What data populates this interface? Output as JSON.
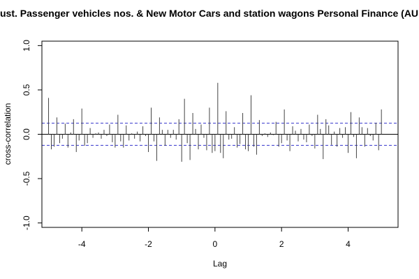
{
  "chart_data": {
    "type": "bar",
    "title": "ust. Passenger vehicles nos. & New Motor Cars and station wagons Personal Finance (AU",
    "xlabel": "Lag",
    "ylabel": "cross-correlation",
    "xlim": [
      -5.2,
      5.5
    ],
    "ylim": [
      -1.05,
      1.05
    ],
    "x_ticks": [
      -4,
      -2,
      0,
      2,
      4
    ],
    "x_tick_labels": [
      "-4",
      "-2",
      "0",
      "2",
      "4"
    ],
    "y_ticks": [
      -1.0,
      -0.5,
      0.0,
      0.5,
      1.0
    ],
    "y_tick_labels": [
      "-1.0",
      "-0.5",
      "0.0",
      "0.5",
      "1.0"
    ],
    "confidence_bounds": [
      0.125,
      -0.125
    ],
    "grid": false,
    "legend": "none",
    "colors": {
      "bars": "#444444",
      "ci_lines": "#3333cc",
      "zero_line": "#000000"
    },
    "x": [
      -5.0,
      -4.9167,
      -4.8333,
      -4.75,
      -4.6667,
      -4.5833,
      -4.5,
      -4.4167,
      -4.3333,
      -4.25,
      -4.1667,
      -4.0833,
      -4.0,
      -3.9167,
      -3.8333,
      -3.75,
      -3.6667,
      -3.5833,
      -3.5,
      -3.4167,
      -3.3333,
      -3.25,
      -3.1667,
      -3.0833,
      -3.0,
      -2.9167,
      -2.8333,
      -2.75,
      -2.6667,
      -2.5833,
      -2.5,
      -2.4167,
      -2.3333,
      -2.25,
      -2.1667,
      -2.0833,
      -2.0,
      -1.9167,
      -1.8333,
      -1.75,
      -1.6667,
      -1.5833,
      -1.5,
      -1.4167,
      -1.3333,
      -1.25,
      -1.1667,
      -1.0833,
      -1.0,
      -0.9167,
      -0.8333,
      -0.75,
      -0.6667,
      -0.5833,
      -0.5,
      -0.4167,
      -0.3333,
      -0.25,
      -0.1667,
      -0.0833,
      0.0,
      0.0833,
      0.1667,
      0.25,
      0.3333,
      0.4167,
      0.5,
      0.5833,
      0.6667,
      0.75,
      0.8333,
      0.9167,
      1.0,
      1.0833,
      1.1667,
      1.25,
      1.3333,
      1.4167,
      1.5,
      1.5833,
      1.6667,
      1.75,
      1.8333,
      1.9167,
      2.0,
      2.0833,
      2.1667,
      2.25,
      2.3333,
      2.4167,
      2.5,
      2.5833,
      2.6667,
      2.75,
      2.8333,
      2.9167,
      3.0,
      3.0833,
      3.1667,
      3.25,
      3.3333,
      3.4167,
      3.5,
      3.5833,
      3.6667,
      3.75,
      3.8333,
      3.9167,
      4.0,
      4.0833,
      4.1667,
      4.25,
      4.3333,
      4.4167,
      4.5,
      4.5833,
      4.6667,
      4.75,
      4.8333,
      4.9167,
      5.0
    ],
    "values": [
      0.41,
      -0.17,
      -0.14,
      0.19,
      -0.1,
      -0.05,
      0.12,
      -0.15,
      0.02,
      0.17,
      -0.2,
      -0.07,
      0.29,
      -0.13,
      -0.1,
      0.07,
      -0.04,
      0.01,
      0.02,
      -0.05,
      0.05,
      -0.02,
      0.11,
      -0.09,
      -0.15,
      0.22,
      -0.08,
      -0.15,
      0.1,
      -0.07,
      0.01,
      -0.05,
      0.03,
      -0.08,
      0.09,
      -0.02,
      -0.2,
      0.3,
      -0.08,
      -0.3,
      0.19,
      0.05,
      -0.13,
      0.05,
      -0.04,
      0.05,
      -0.06,
      0.17,
      -0.31,
      0.4,
      -0.1,
      -0.29,
      0.24,
      0.06,
      -0.17,
      0.11,
      -0.04,
      -0.18,
      0.3,
      -0.21,
      -0.19,
      0.58,
      -0.21,
      -0.27,
      0.26,
      -0.06,
      -0.05,
      0.08,
      -0.15,
      -0.11,
      0.24,
      -0.17,
      -0.19,
      0.44,
      -0.14,
      -0.23,
      0.16,
      -0.02,
      0.01,
      -0.03,
      0.02,
      -0.01,
      0.14,
      -0.14,
      -0.1,
      0.28,
      -0.07,
      -0.19,
      0.09,
      0.04,
      -0.08,
      0.06,
      -0.06,
      -0.09,
      0.11,
      -0.02,
      -0.16,
      0.22,
      0.06,
      -0.28,
      0.17,
      0.1,
      -0.12,
      0.03,
      -0.14,
      0.07,
      -0.04,
      0.08,
      -0.21,
      0.25,
      -0.03,
      -0.27,
      0.19,
      0.08,
      -0.14,
      0.07,
      -0.02,
      -0.07,
      0.13,
      -0.18,
      0.28
    ]
  }
}
